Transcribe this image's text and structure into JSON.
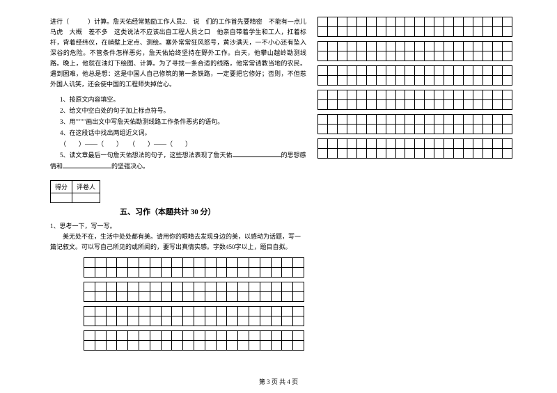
{
  "passage": "进行（　　　）计算。詹天佑经常勉励工作人员2.　说　们的工作首先要精密　不能有一点儿马虎　大概　差不多　这类说法不应该出自工程人员之口　他亲自带着学生和工人，扛着标杆，背着经纬仪，在峭壁上定点、测绘。塞外常常狂风怒号，黄沙满天，一不小心还有坠入深谷的危险。不管条件怎样恶劣，詹天佑始终坚持在野外工作。白天，他攀山越岭勘测线路。晚上，他就在油灯下绘图、计算。为了寻找一条合适的线路，他常常请教当地的农民。遇到困难，他总是想：这是中国人自己修筑的第一条铁路，一定要把它修好；否则，不但惹外国人讥笑，还会使中国的工程师失掉信心。",
  "questions": {
    "q1": "1、按原文内容填空。",
    "q2": "2、给文中空白处的句子加上标点符号。",
    "q3": "3、用\"\"\"\"画出文中写詹天佑勘测线路工作条件恶劣的语句。",
    "q4": "4、在这段话中找出两组近义词。",
    "q4b": "（　　）——（　　）　　（　　）——（　　）",
    "q5a": "5、读文章最后一句詹天佑想法的句子，这些想法表现了詹天佑",
    "q5b": "的思想感",
    "q5c": "情和",
    "q5d": "的坚强决心。"
  },
  "score_labels": {
    "a": "得分",
    "b": "评卷人"
  },
  "section_title": "五、习作（本题共计 30 分）",
  "writing": {
    "l1": "1、思考一下，写一写。",
    "l2": "美无处不在，生活中处处都有美。请用你的眼睛去发现身边的美，以感动为话题，写一篇记叙文。可以写自己所见的或所闻的，要写出真情实感。字数450字以上，题目自拟。"
  },
  "footer": "第 3 页 共 4 页",
  "grid": {
    "right_blocks": 6,
    "right_rows_per_block": 2,
    "right_cols": 20,
    "bottom_blocks": 4,
    "bottom_rows_per_block": 2,
    "bottom_cols": 20
  },
  "colors": {
    "text": "#000000",
    "bg": "#ffffff",
    "border": "#000000"
  }
}
